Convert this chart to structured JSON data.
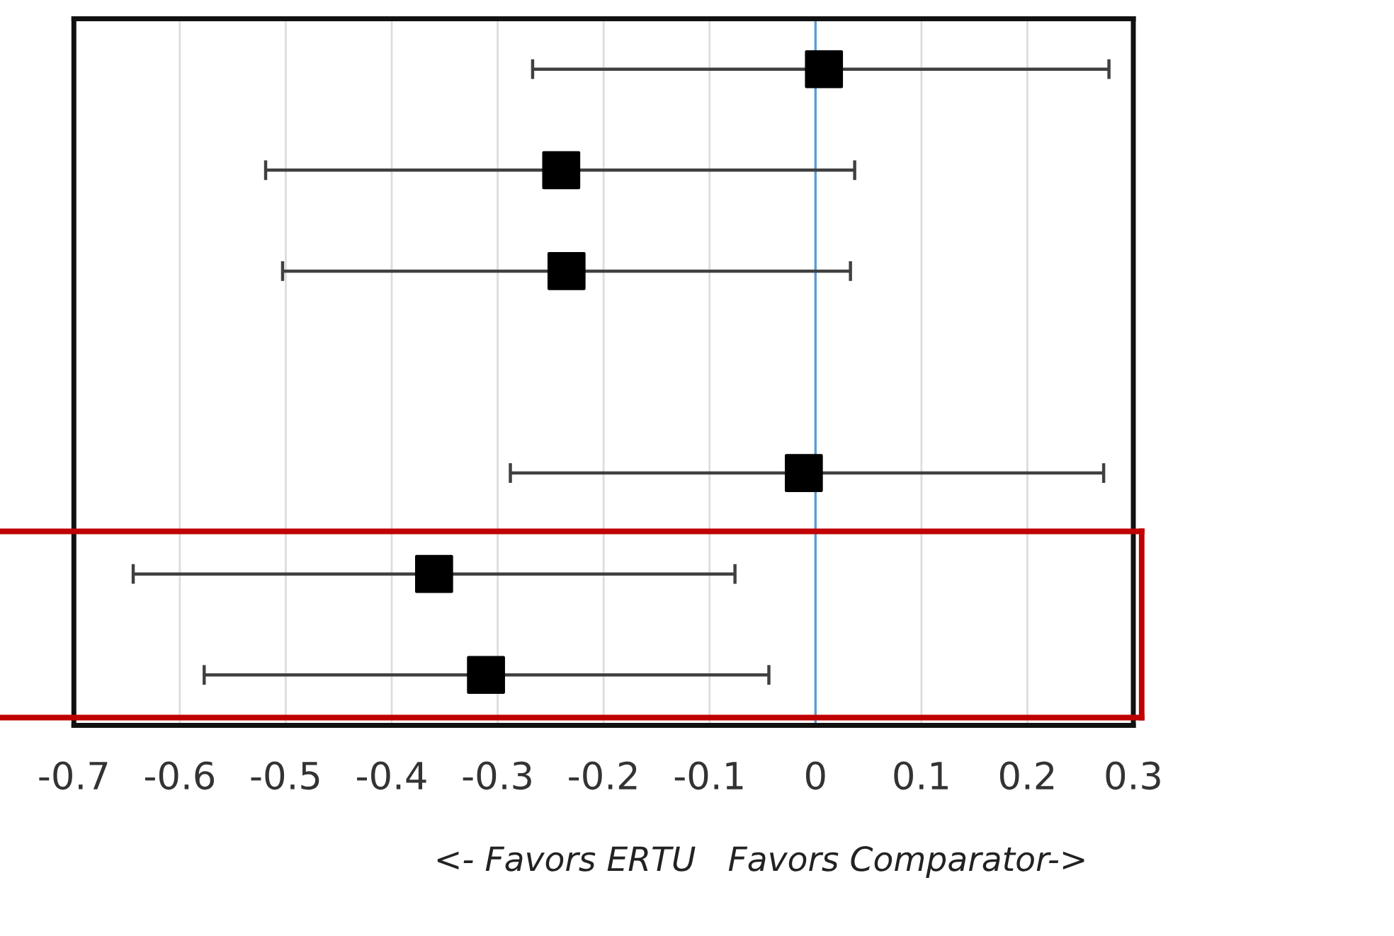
{
  "chart_data": {
    "type": "scatter",
    "orientation": "horizontal",
    "categories": [
      null,
      null,
      null,
      null,
      null,
      null,
      null
    ],
    "values": [
      0.008,
      -0.24,
      -0.235,
      null,
      -0.011,
      -0.36,
      -0.311
    ],
    "errors": [
      [
        -0.267,
        0.277
      ],
      [
        -0.519,
        0.037
      ],
      [
        -0.503,
        0.033
      ],
      null,
      [
        -0.288,
        0.272
      ],
      [
        -0.644,
        -0.076
      ],
      [
        -0.577,
        -0.044
      ]
    ],
    "color": "#000000",
    "marker": "square",
    "xlim": [
      -0.7,
      0.3
    ],
    "xticks": [
      -0.7,
      -0.6,
      -0.5,
      -0.4,
      -0.3,
      -0.2,
      -0.1,
      0,
      0.1,
      0.2,
      0.3
    ],
    "xlabel": "<- Favors ERTU   Favors Comparator->",
    "ref_lines": [
      {
        "axis": "x",
        "value": 0,
        "color": "#5b9bd5"
      }
    ],
    "grid": "x",
    "tick_labels": "x"
  }
}
